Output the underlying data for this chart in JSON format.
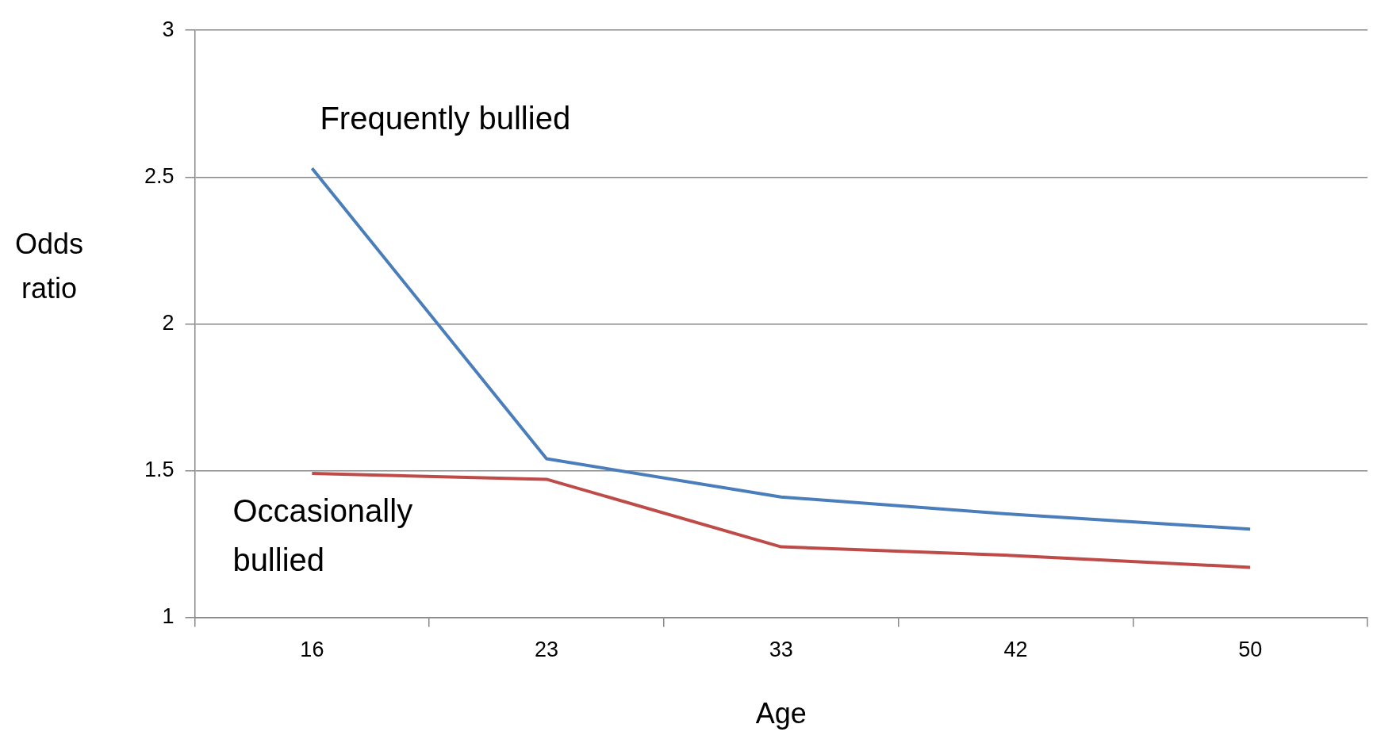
{
  "chart_data": {
    "type": "line",
    "xlabel": "Age",
    "ylabel": "Odds ratio",
    "categories": [
      "16",
      "23",
      "33",
      "42",
      "50"
    ],
    "series": [
      {
        "name": "Frequently bullied",
        "color": "#4a7ebb",
        "values": [
          2.53,
          1.54,
          1.41,
          1.35,
          1.3
        ]
      },
      {
        "name": "Occasionally bullied",
        "color": "#be4b48",
        "values": [
          1.49,
          1.47,
          1.24,
          1.21,
          1.17
        ]
      }
    ],
    "ylim": [
      1,
      3
    ],
    "yticks": [
      1,
      1.5,
      2,
      2.5,
      3
    ],
    "grid": "y",
    "legend": false,
    "marker": "none",
    "line_style": "solid"
  }
}
